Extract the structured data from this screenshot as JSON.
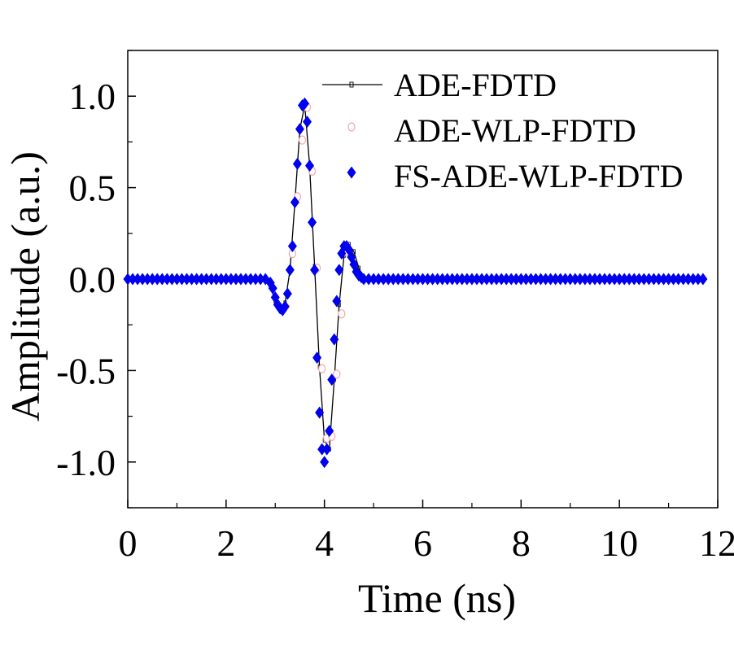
{
  "chart_data": {
    "type": "line",
    "xlabel": "Time (ns)",
    "ylabel": "Amplitude (a.u.)",
    "xlim": [
      0,
      12
    ],
    "ylim": [
      -1.25,
      1.25
    ],
    "x_ticks": [
      0,
      2,
      4,
      6,
      8,
      10,
      12
    ],
    "y_ticks": [
      -1.0,
      -0.5,
      0.0,
      0.5,
      1.0
    ],
    "x_tick_labels": [
      "0",
      "2",
      "4",
      "6",
      "8",
      "10",
      "12"
    ],
    "y_tick_labels": [
      "-1.0",
      "-0.5",
      "0.0",
      "0.5",
      "1.0"
    ],
    "grid": false,
    "legend_position": "top-right",
    "x": [
      2.6,
      2.8,
      2.9,
      3.0,
      3.1,
      3.2,
      3.3,
      3.4,
      3.5,
      3.6,
      3.7,
      3.8,
      3.9,
      4.0,
      4.1,
      4.2,
      4.3,
      4.4,
      4.5,
      4.6,
      4.7,
      4.8,
      4.9,
      5.0,
      5.2
    ],
    "series": [
      {
        "name": "ADE-FDTD",
        "color": "#000000",
        "marker": "small-square-line",
        "values": [
          0.0,
          0.0,
          -0.04,
          -0.12,
          -0.17,
          -0.13,
          0.05,
          0.42,
          0.82,
          0.95,
          0.62,
          0.07,
          -0.48,
          -0.88,
          -0.93,
          -0.55,
          -0.14,
          0.13,
          0.19,
          0.15,
          0.06,
          0.01,
          0.0,
          0.0,
          0.0
        ]
      },
      {
        "name": "ADE-WLP-FDTD",
        "color": "#f4a6a6",
        "marker": "open-circle",
        "x": [
          3.35,
          3.45,
          3.55,
          3.65,
          3.75,
          3.85,
          3.95,
          4.05,
          4.15,
          4.25,
          4.35,
          4.45
        ],
        "values": [
          0.14,
          0.45,
          0.76,
          0.94,
          0.59,
          0.06,
          -0.49,
          -0.87,
          -0.86,
          -0.52,
          -0.19,
          0.15
        ]
      },
      {
        "name": "FS-ADE-WLP-FDTD",
        "color": "#0000ee",
        "marker": "filled-diamond",
        "x": [
          0.0,
          0.1,
          0.2,
          0.3,
          0.4,
          0.5,
          0.6,
          0.7,
          0.8,
          0.9,
          1.0,
          1.1,
          1.2,
          1.3,
          1.4,
          1.5,
          1.6,
          1.7,
          1.8,
          1.9,
          2.0,
          2.1,
          2.2,
          2.3,
          2.4,
          2.5,
          2.6,
          2.7,
          2.8,
          2.9,
          2.95,
          3.0,
          3.05,
          3.1,
          3.15,
          3.2,
          3.25,
          3.3,
          3.35,
          3.4,
          3.45,
          3.5,
          3.55,
          3.6,
          3.65,
          3.7,
          3.75,
          3.8,
          3.85,
          3.9,
          3.95,
          4.0,
          4.05,
          4.1,
          4.15,
          4.2,
          4.25,
          4.3,
          4.35,
          4.4,
          4.45,
          4.5,
          4.55,
          4.6,
          4.65,
          4.7,
          4.75,
          4.8,
          4.9,
          5.0,
          5.1,
          5.2,
          5.3,
          5.4,
          5.5,
          5.6,
          5.7,
          5.8,
          5.9,
          6.0,
          6.1,
          6.2,
          6.3,
          6.4,
          6.5,
          6.6,
          6.7,
          6.8,
          6.9,
          7.0,
          7.1,
          7.2,
          7.3,
          7.4,
          7.5,
          7.6,
          7.7,
          7.8,
          7.9,
          8.0,
          8.1,
          8.2,
          8.3,
          8.4,
          8.5,
          8.6,
          8.7,
          8.8,
          8.9,
          9.0,
          9.1,
          9.2,
          9.3,
          9.4,
          9.5,
          9.6,
          9.7,
          9.8,
          9.9,
          10.0,
          10.1,
          10.2,
          10.3,
          10.4,
          10.5,
          10.6,
          10.7,
          10.8,
          10.9,
          11.0,
          11.1,
          11.2,
          11.3,
          11.4,
          11.5,
          11.6,
          11.7
        ],
        "values": [
          0.0,
          0.0,
          0.0,
          0.0,
          0.0,
          0.0,
          0.0,
          0.0,
          0.0,
          0.0,
          0.0,
          0.0,
          0.0,
          0.0,
          0.0,
          0.0,
          0.0,
          0.0,
          0.0,
          0.0,
          0.0,
          0.0,
          0.0,
          0.0,
          0.0,
          0.0,
          0.0,
          0.0,
          0.0,
          -0.02,
          -0.05,
          -0.1,
          -0.14,
          -0.16,
          -0.17,
          -0.15,
          -0.08,
          0.05,
          0.18,
          0.42,
          0.63,
          0.82,
          0.95,
          0.96,
          0.86,
          0.62,
          0.31,
          0.05,
          -0.43,
          -0.73,
          -0.93,
          -1.0,
          -0.93,
          -0.83,
          -0.55,
          -0.33,
          -0.12,
          0.05,
          0.14,
          0.18,
          0.18,
          0.16,
          0.12,
          0.08,
          0.04,
          0.02,
          0.01,
          0.0,
          0.0,
          0.0,
          0.0,
          0.0,
          0.0,
          0.0,
          0.0,
          0.0,
          0.0,
          0.0,
          0.0,
          0.0,
          0.0,
          0.0,
          0.0,
          0.0,
          0.0,
          0.0,
          0.0,
          0.0,
          0.0,
          0.0,
          0.0,
          0.0,
          0.0,
          0.0,
          0.0,
          0.0,
          0.0,
          0.0,
          0.0,
          0.0,
          0.0,
          0.0,
          0.0,
          0.0,
          0.0,
          0.0,
          0.0,
          0.0,
          0.0,
          0.0,
          0.0,
          0.0,
          0.0,
          0.0,
          0.0,
          0.0,
          0.0,
          0.0,
          0.0,
          0.0,
          0.0,
          0.0,
          0.0,
          0.0,
          0.0,
          0.0,
          0.0,
          0.0,
          0.0,
          0.0,
          0.0,
          0.0,
          0.0,
          0.0,
          0.0,
          0.0,
          0.0
        ]
      }
    ]
  }
}
